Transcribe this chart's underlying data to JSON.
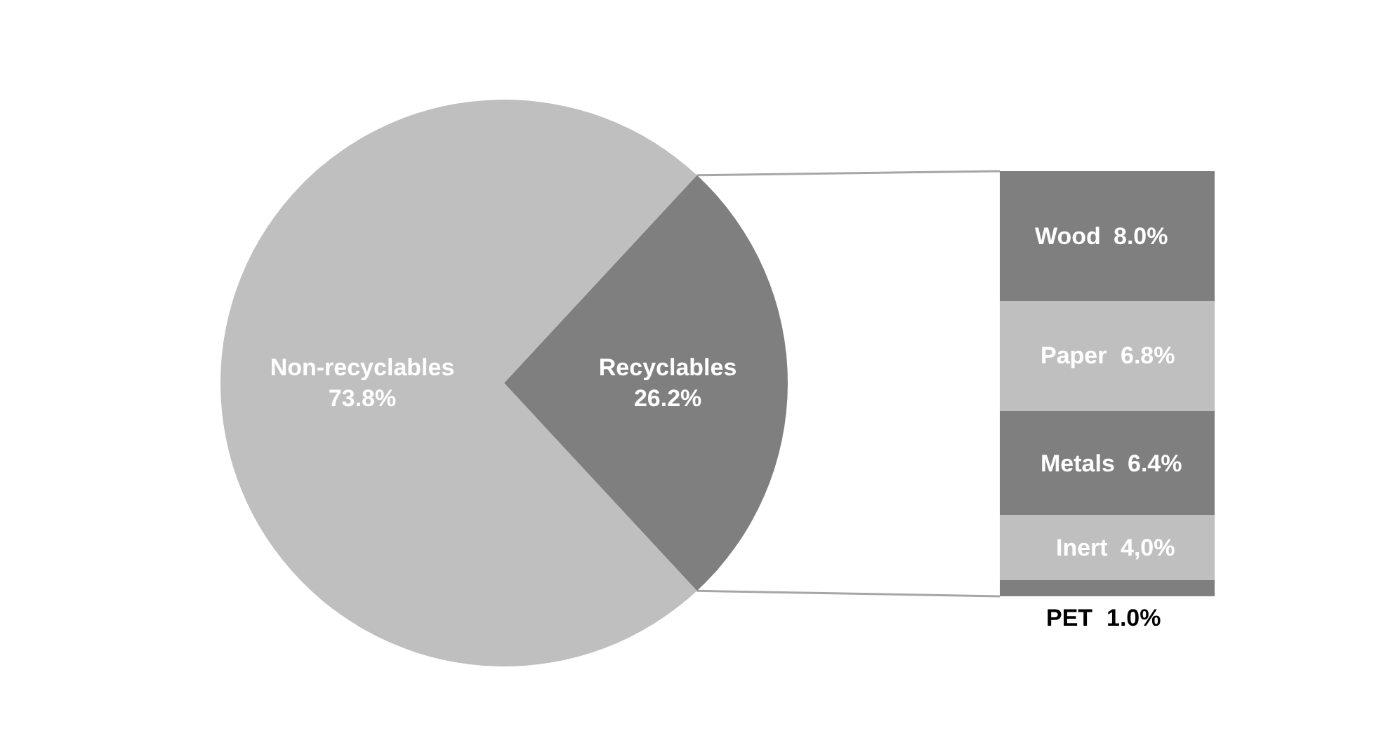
{
  "chart_data": [
    {
      "type": "pie",
      "categories": [
        "Non-recyclables",
        "Recyclables"
      ],
      "values": [
        73.8,
        26.2
      ],
      "colors": [
        "#bfbfbf",
        "#7f7f7f"
      ],
      "value_labels": [
        "73.8%",
        "26.2%"
      ]
    },
    {
      "type": "bar",
      "stacked": true,
      "categories": [
        null
      ],
      "series": [
        {
          "name": "PET",
          "color": "#7f7f7f",
          "values": [
            1.0
          ],
          "value_labels": [
            "1.0%"
          ]
        },
        {
          "name": "Inert",
          "color": "#bfbfbf",
          "values": [
            4.0
          ],
          "value_labels": [
            "4,0%"
          ]
        },
        {
          "name": "Metals",
          "color": "#7f7f7f",
          "values": [
            6.4
          ],
          "value_labels": [
            "6.4%"
          ]
        },
        {
          "name": "Paper",
          "color": "#bfbfbf",
          "values": [
            6.8
          ],
          "value_labels": [
            "6.8%"
          ]
        },
        {
          "name": "Wood",
          "color": "#7f7f7f",
          "values": [
            8.0
          ],
          "value_labels": [
            "8.0%"
          ]
        }
      ]
    }
  ]
}
